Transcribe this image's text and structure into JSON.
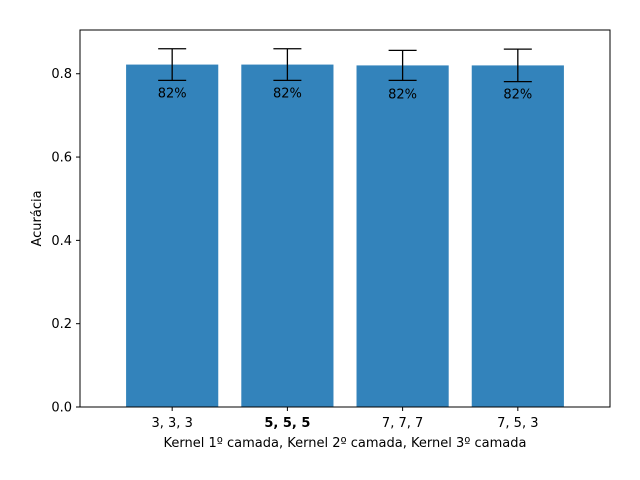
{
  "chart_data": {
    "type": "bar",
    "categories": [
      "3, 3, 3",
      "5, 5, 5",
      "7, 7, 7",
      "7, 5, 3"
    ],
    "bold_categories": [
      "5, 5, 5"
    ],
    "values": [
      0.822,
      0.822,
      0.82,
      0.82
    ],
    "errors": [
      0.038,
      0.038,
      0.036,
      0.039
    ],
    "data_labels": [
      "82%",
      "82%",
      "82%",
      "82%"
    ],
    "title": "",
    "xlabel": "Kernel 1º camada, Kernel 2º camada, Kernel 3º camada",
    "ylabel": "Acurácia",
    "ylim": [
      0,
      0.905
    ],
    "yticks": [
      0.0,
      0.2,
      0.4,
      0.6,
      0.8
    ],
    "ytick_labels": [
      "0.0",
      "0.2",
      "0.4",
      "0.6",
      "0.8"
    ],
    "bar_color": "#3383BB",
    "grid": false,
    "legend": "none"
  }
}
